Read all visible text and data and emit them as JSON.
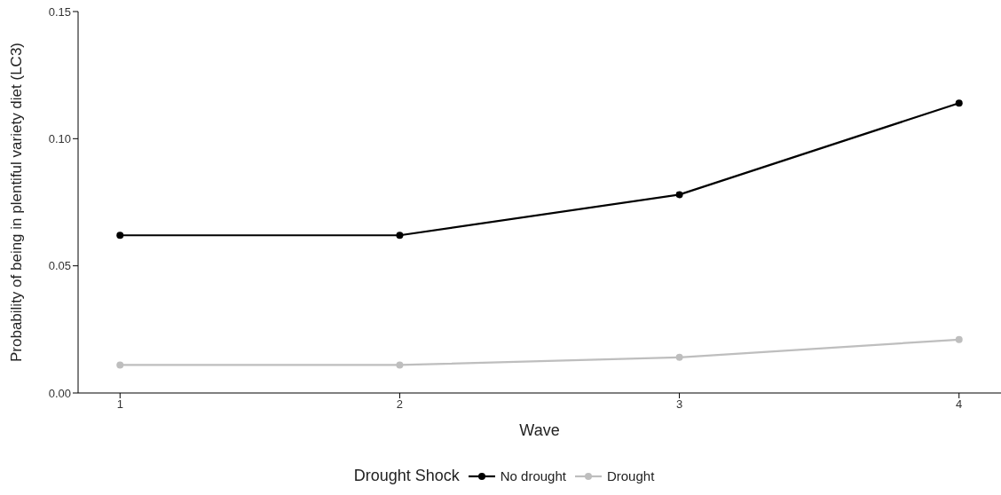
{
  "chart_data": {
    "type": "line",
    "xlabel": "Wave",
    "ylabel": "Probability of being in plentiful variety diet (LC3)",
    "legend_title": "Drought Shock",
    "x": [
      1,
      2,
      3,
      4
    ],
    "series": [
      {
        "name": "No drought",
        "color": "#000000",
        "values": [
          0.062,
          0.062,
          0.078,
          0.114
        ]
      },
      {
        "name": "Drought",
        "color": "#bebebe",
        "values": [
          0.011,
          0.011,
          0.014,
          0.021
        ]
      }
    ],
    "xlim": [
      0.85,
      4.15
    ],
    "xticks": [
      1,
      2,
      3,
      4
    ],
    "ylim": [
      0,
      0.15
    ],
    "yticks": [
      {
        "value": 0,
        "label": "0.00"
      },
      {
        "value": 0.05,
        "label": "0.05"
      },
      {
        "value": 0.1,
        "label": "0.10"
      },
      {
        "value": 0.15,
        "label": "0.15"
      }
    ],
    "grid": false,
    "legend": "bottom",
    "marker": "circle",
    "line_style": "solid"
  }
}
